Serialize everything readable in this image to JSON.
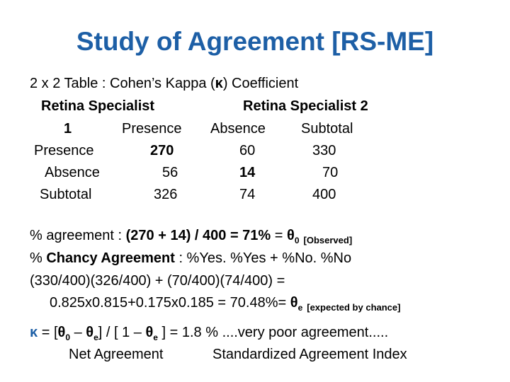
{
  "title": "Study of Agreement [RS-ME]",
  "subtitle": [
    "2 x 2 Table : Cohen’s Kappa (",
    "κ",
    ") Coefficient"
  ],
  "table": {
    "header": [
      "Retina Specialist",
      "Retina Specialist 2"
    ],
    "columns": [
      "1",
      "Presence",
      "Absence",
      "Subtotal"
    ],
    "rows": [
      [
        "Presence",
        270,
        60,
        330
      ],
      [
        "Absence",
        56,
        14,
        70
      ],
      [
        "Subtotal",
        326,
        74,
        400
      ]
    ]
  },
  "formulas": [
    [
      "% agreement : ",
      "(270 + 14) / 400 = 71%",
      " = ",
      "θ",
      "0",
      "[Observed]"
    ],
    [
      "% ",
      "Chancy Agreement",
      " : %Yes. %Yes + %No. %No"
    ],
    [
      "(330/400)(326/400) + (70/400)(74/400) ="
    ],
    [
      "0.825x0.815+0.175x0.185 = 70.48%= ",
      "θ",
      "e",
      "[expected by chance]"
    ],
    [
      "κ",
      " = [",
      "θ",
      "0",
      " – ",
      "θ",
      "e",
      "] / [ 1 – ",
      "θ",
      "e",
      " ] = 1.8 % ....very poor agreement....."
    ],
    [
      "Net Agreement",
      "Standardized Agreement Index"
    ]
  ]
}
